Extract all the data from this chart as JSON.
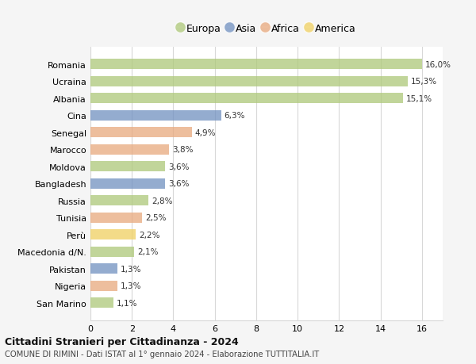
{
  "categories": [
    "Romania",
    "Ucraina",
    "Albania",
    "Cina",
    "Senegal",
    "Marocco",
    "Moldova",
    "Bangladesh",
    "Russia",
    "Tunisia",
    "Perù",
    "Macedonia d/N.",
    "Pakistan",
    "Nigeria",
    "San Marino"
  ],
  "values": [
    16.0,
    15.3,
    15.1,
    6.3,
    4.9,
    3.8,
    3.6,
    3.6,
    2.8,
    2.5,
    2.2,
    2.1,
    1.3,
    1.3,
    1.1
  ],
  "labels": [
    "16,0%",
    "15,3%",
    "15,1%",
    "6,3%",
    "4,9%",
    "3,8%",
    "3,6%",
    "3,6%",
    "2,8%",
    "2,5%",
    "2,2%",
    "2,1%",
    "1,3%",
    "1,3%",
    "1,1%"
  ],
  "continents": [
    "Europa",
    "Europa",
    "Europa",
    "Asia",
    "Africa",
    "Africa",
    "Europa",
    "Asia",
    "Europa",
    "Africa",
    "America",
    "Europa",
    "Asia",
    "Africa",
    "Europa"
  ],
  "colors": {
    "Europa": "#adc878",
    "Asia": "#7090c0",
    "Africa": "#e8a87c",
    "America": "#f0d060"
  },
  "xlim": [
    0,
    17
  ],
  "xticks": [
    0,
    2,
    4,
    6,
    8,
    10,
    12,
    14,
    16
  ],
  "title": "Cittadini Stranieri per Cittadinanza - 2024",
  "subtitle": "COMUNE DI RIMINI - Dati ISTAT al 1° gennaio 2024 - Elaborazione TUTTITALIA.IT",
  "background_color": "#f5f5f5",
  "plot_bg_color": "#ffffff",
  "grid_color": "#d8d8d8",
  "legend_order": [
    "Europa",
    "Asia",
    "Africa",
    "America"
  ],
  "bar_height": 0.6,
  "bar_alpha": 0.75
}
